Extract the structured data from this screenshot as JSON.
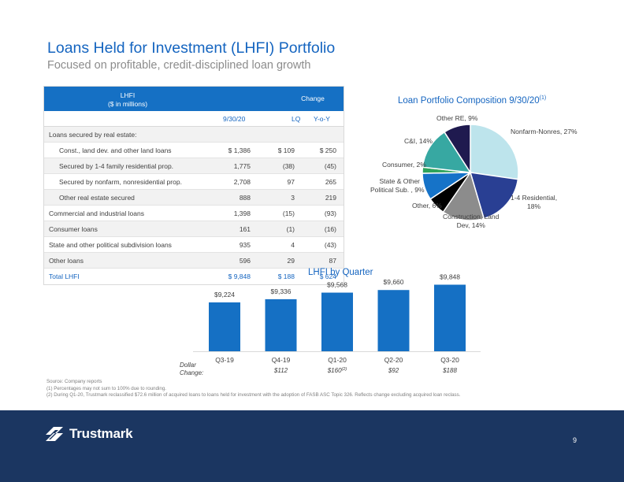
{
  "header": {
    "title": "Loans Held for Investment (LHFI) Portfolio",
    "subtitle": "Focused on profitable, credit-disciplined loan growth"
  },
  "table": {
    "header_lhfi_line1": "LHFI",
    "header_lhfi_line2": "($ in millions)",
    "header_change": "Change",
    "col_date": "9/30/20",
    "col_lq": "LQ",
    "col_yoy": "Y-o-Y",
    "section_label": "Loans secured by real estate:",
    "rows": [
      {
        "label": "Const., land dev. and other land loans",
        "value": "$ 1,386",
        "lq": "$ 109",
        "yoy": "$ 250"
      },
      {
        "label": "Secured by 1-4 family residential prop.",
        "value": "1,775",
        "lq": "(38)",
        "yoy": "(45)"
      },
      {
        "label": "Secured by nonfarm, nonresidential prop.",
        "value": "2,708",
        "lq": "97",
        "yoy": "265"
      },
      {
        "label": "Other real estate secured",
        "value": "888",
        "lq": "3",
        "yoy": "219"
      },
      {
        "label": "Commercial and industrial loans",
        "value": "1,398",
        "lq": "(15)",
        "yoy": "(93)"
      },
      {
        "label": "Consumer loans",
        "value": "161",
        "lq": "(1)",
        "yoy": "(16)"
      },
      {
        "label": "State and other political subdivision loans",
        "value": "935",
        "lq": "4",
        "yoy": "(43)"
      },
      {
        "label": "Other loans",
        "value": "596",
        "lq": "29",
        "yoy": "87"
      }
    ],
    "total": {
      "label": "Total LHFI",
      "value": "$ 9,848",
      "lq": "$ 188",
      "yoy": "$ 624"
    }
  },
  "chart_data": [
    {
      "type": "pie",
      "title": "Loan Portfolio Composition 9/30/20",
      "title_footnote": "(1)",
      "slices": [
        {
          "name": "Nonfarm-Nonres",
          "value": 27,
          "label": "Nonfarm-Nonres, 27%",
          "color": "#bde4ec"
        },
        {
          "name": "1-4 Residential",
          "value": 18,
          "label": "1-4 Residential, 18%",
          "color": "#293f93"
        },
        {
          "name": "Construction, Land Dev",
          "value": 14,
          "label": "Construction, Land Dev, 14%",
          "color": "#8c8c8c"
        },
        {
          "name": "Other",
          "value": 6,
          "label": "Other, 6%",
          "color": "#000000"
        },
        {
          "name": "State & Other Political Sub.",
          "value": 9,
          "label": "State & Other Political Sub. , 9%",
          "color": "#1673c8"
        },
        {
          "name": "Consumer",
          "value": 2,
          "label": "Consumer, 2%",
          "color": "#2ea35c"
        },
        {
          "name": "C&I",
          "value": 14,
          "label": "C&I, 14%",
          "color": "#37a8a2"
        },
        {
          "name": "Other RE",
          "value": 9,
          "label": "Other RE, 9%",
          "color": "#1f1a4f"
        }
      ]
    },
    {
      "type": "bar",
      "title": "LHFI by Quarter",
      "categories": [
        "Q3-19",
        "Q4-19",
        "Q1-20",
        "Q2-20",
        "Q3-20"
      ],
      "values": [
        9224,
        9336,
        9568,
        9660,
        9848
      ],
      "value_labels": [
        "$9,224",
        "$9,336",
        "$9,568",
        "$9,660",
        "$9,848"
      ],
      "ylim": [
        7500,
        10000
      ],
      "bar_color": "#1570c4",
      "dollar_change_label_line1": "Dollar",
      "dollar_change_label_line2": "Change:",
      "dollar_changes": [
        "",
        "$112",
        "$160",
        "$92",
        "$188"
      ],
      "dollar_change_footnotes": [
        "",
        "",
        "(2)",
        "",
        ""
      ]
    }
  ],
  "footnotes": [
    "Source: Company reports",
    "(1) Percentages may not sum to 100% due to rounding.",
    "(2) During Q1-20, Trustmark reclassified $72.6 million of acquired loans to loans held for investment with the adoption of FASB ASC Topic 326. Reflects change excluding acquired loan reclass."
  ],
  "footer": {
    "logo_text": "Trustmark",
    "page_number": "9"
  }
}
